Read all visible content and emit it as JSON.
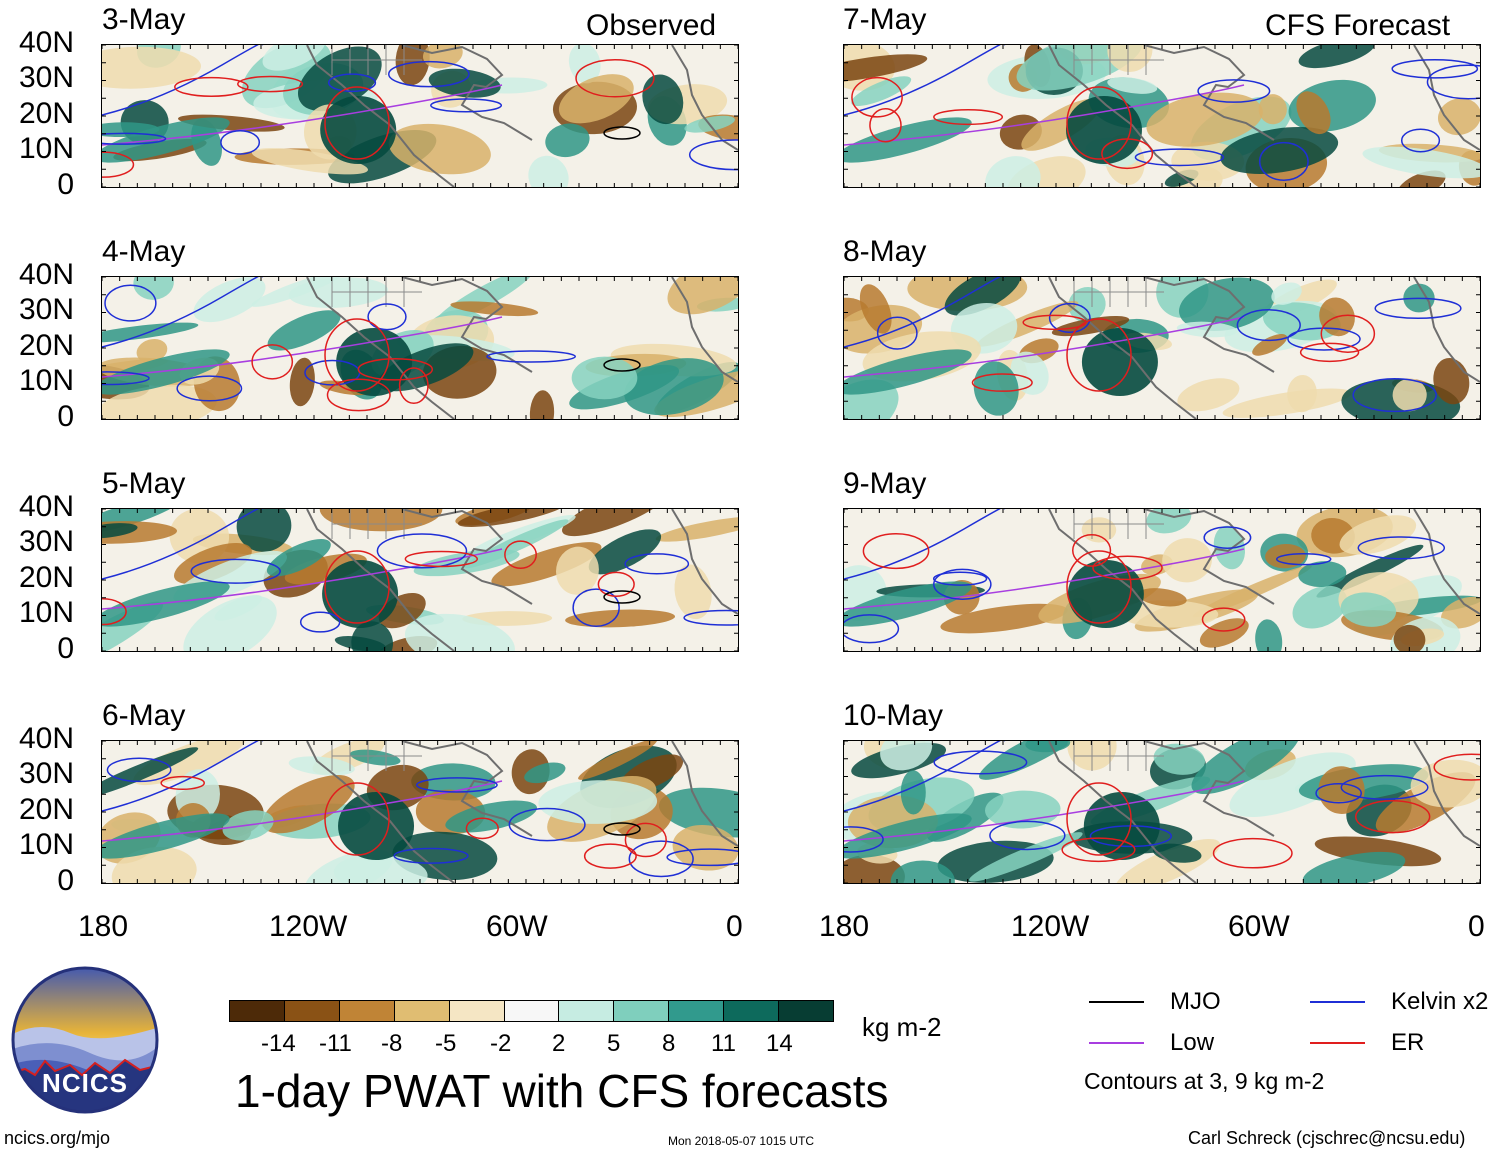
{
  "headers": {
    "left": "Observed",
    "right": "CFS Forecast"
  },
  "panels_left": [
    {
      "date": "3-May"
    },
    {
      "date": "4-May"
    },
    {
      "date": "5-May"
    },
    {
      "date": "6-May"
    }
  ],
  "panels_right": [
    {
      "date": "7-May"
    },
    {
      "date": "8-May"
    },
    {
      "date": "9-May"
    },
    {
      "date": "10-May"
    }
  ],
  "lat_labels": [
    "40N",
    "30N",
    "20N",
    "10N",
    "0"
  ],
  "lon_labels": [
    "180",
    "120W",
    "60W",
    "0"
  ],
  "colorbar": {
    "colors": [
      "#4d2a08",
      "#8a5215",
      "#c08436",
      "#e0bd72",
      "#f5e6c4",
      "#f7f7f7",
      "#c6ece2",
      "#7fcfbd",
      "#319a8d",
      "#0d6a5c",
      "#073d33"
    ],
    "ticks": [
      "-14",
      "-11",
      "-8",
      "-5",
      "-2",
      "2",
      "5",
      "8",
      "11",
      "14"
    ],
    "units": "kg m-2"
  },
  "title": "1-day PWAT with CFS forecasts",
  "legend": {
    "items": [
      {
        "label": "MJO",
        "color": "#000000"
      },
      {
        "label": "Kelvin x2",
        "color": "#1f2fd6"
      },
      {
        "label": "Low",
        "color": "#a83ee0"
      },
      {
        "label": "ER",
        "color": "#e01e1e"
      }
    ],
    "note": "Contours at 3, 9 kg m-2"
  },
  "logo": {
    "text": "NCICS"
  },
  "footer": {
    "left": "ncics.org/mjo",
    "center": "Mon 2018-05-07 1015 UTC",
    "right": "Carl Schreck (cjschrec@ncsu.edu)"
  }
}
